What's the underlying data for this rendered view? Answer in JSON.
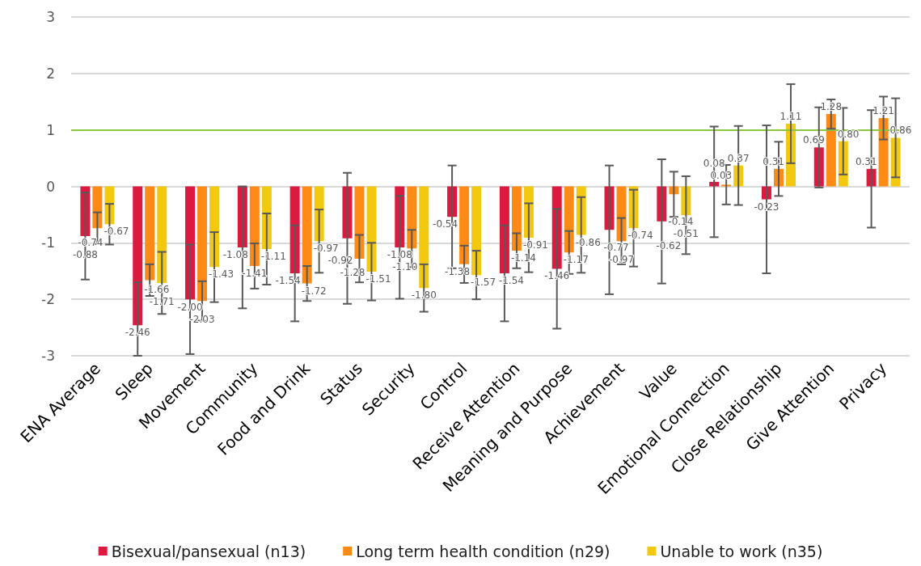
{
  "chart_data": {
    "type": "bar",
    "categories": [
      "ENA Average",
      "Sleep",
      "Movement",
      "Community",
      "Food and Drink",
      "Status",
      "Security",
      "Control",
      "Receive Attention",
      "Meaning and Purpose",
      "Achievement",
      "Value",
      "Emotional Connection",
      "Close Relationship",
      "Give Attention",
      "Privacy"
    ],
    "series": [
      {
        "name": "Bisexual/pansexual (n13)",
        "color": "#dc1a3f",
        "values": [
          -0.88,
          -2.46,
          -2,
          -1.08,
          -1.54,
          -0.92,
          -1.08,
          -0.54,
          -1.54,
          -1.46,
          -0.77,
          -0.62,
          0.08,
          -0.23,
          0.69,
          0.31
        ],
        "errors": [
          0.77,
          [
            -3,
            -1.7
          ],
          0.97,
          1.08,
          0.85,
          1.16,
          0.91,
          0.91,
          0.85,
          1.06,
          1.14,
          1.1,
          0.98,
          1.31,
          0.71,
          1.04
        ],
        "value_labels": [
          "-0.88",
          "-2.46",
          "-2.00",
          "-1.08",
          "-1.54",
          "-0.92",
          "-1.08",
          "-0.54",
          "-1.54",
          "-1.46",
          "-0.77",
          "-0.62",
          "0.08",
          "-0.23",
          "0.69",
          "0.31"
        ]
      },
      {
        "name": "Long term health condition (n29)",
        "color": "#fd8a14",
        "values": [
          -0.74,
          -1.66,
          -2.03,
          -1.41,
          -1.72,
          -1.28,
          -1.1,
          -1.38,
          -1.14,
          -1.17,
          -0.97,
          -0.14,
          0.03,
          0.31,
          1.28,
          1.21
        ],
        "errors": [
          0.28,
          0.28,
          0.35,
          0.4,
          0.31,
          0.42,
          0.33,
          0.33,
          0.31,
          0.38,
          0.41,
          0.4,
          0.35,
          0.48,
          0.26,
          0.38
        ],
        "value_labels": [
          "-0.74",
          "-1.66",
          "-2.03",
          "-1.41",
          "-1.72",
          "-1.28",
          "-1.10",
          "-1.38",
          "-1.14",
          "-1.17",
          "-0.97",
          "-0.14",
          "0.03",
          "0.31",
          "1.28",
          "1.21"
        ]
      },
      {
        "name": "Unable to work (n35)",
        "color": "#f2c811",
        "values": [
          -0.67,
          -1.71,
          -1.43,
          -1.11,
          -0.97,
          -1.51,
          -1.8,
          -1.57,
          -0.91,
          -0.86,
          -0.74,
          -0.51,
          0.37,
          1.11,
          0.8,
          0.86
        ],
        "errors": [
          0.36,
          0.55,
          0.62,
          0.63,
          0.56,
          0.51,
          0.42,
          0.43,
          0.61,
          0.67,
          0.68,
          0.69,
          0.7,
          0.7,
          0.59,
          0.7
        ],
        "value_labels": [
          "-0.67",
          "-1.71",
          "-1.43",
          "-1.11",
          "-0.97",
          "-1.51",
          "-1.80",
          "-1.57",
          "-0.91",
          "-0.86",
          "-0.74",
          "-0.51",
          "0.37",
          "1.11",
          "0.80",
          "0.86"
        ]
      }
    ],
    "ylim": [
      -3,
      3
    ],
    "yticks": [
      -3,
      -2,
      -1,
      0,
      1,
      2,
      3
    ],
    "ref_lines": [
      {
        "axis": "y",
        "value": 1,
        "color": "#8dc63f"
      }
    ],
    "grid": "y",
    "legend": "bottom"
  }
}
